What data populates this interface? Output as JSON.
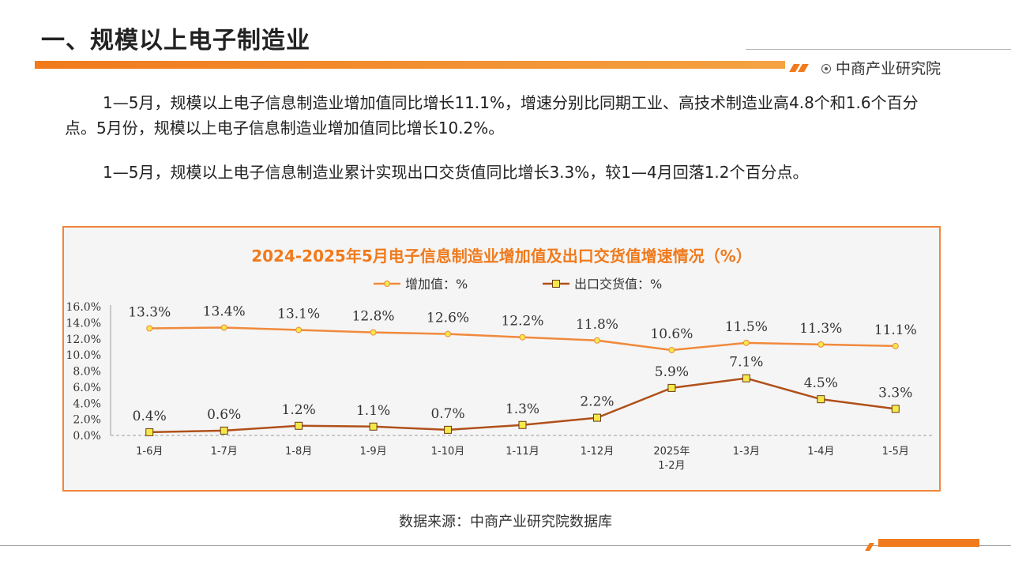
{
  "page": {
    "title": "一、规模以上电子制造业",
    "brand": "中商产业研究院",
    "paragraph1": "1—5月，规模以上电子信息制造业增加值同比增长11.1%，增速分别比同期工业、高技术制造业高4.8个和1.6个百分点。5月份，规模以上电子信息制造业增加值同比增长10.2%。",
    "paragraph2": "1—5月，规模以上电子信息制造业累计实现出口交货值同比增长3.3%，较1—4月回落1.2个百分点。",
    "source": "数据来源：中商产业研究院数据库",
    "accent_color": "#f07a1c"
  },
  "chart_data": {
    "type": "line",
    "title": "2024-2025年5月电子信息制造业增加值及出口交货值增速情况（%）",
    "categories": [
      "1-6月",
      "1-7月",
      "1-8月",
      "1-9月",
      "1-10月",
      "1-11月",
      "1-12月",
      "2025年\n1-2月",
      "1-3月",
      "1-4月",
      "1-5月"
    ],
    "series": [
      {
        "name": "增加值：%",
        "values": [
          13.3,
          13.4,
          13.1,
          12.8,
          12.6,
          12.2,
          11.8,
          10.6,
          11.5,
          11.3,
          11.1
        ],
        "color": "#f08a3c",
        "marker": "circle"
      },
      {
        "name": "出口交货值：%",
        "values": [
          0.4,
          0.6,
          1.2,
          1.1,
          0.7,
          1.3,
          2.2,
          5.9,
          7.1,
          4.5,
          3.3
        ],
        "color": "#b0501a",
        "marker": "square"
      }
    ],
    "yticks": [
      "0.0%",
      "2.0%",
      "4.0%",
      "6.0%",
      "8.0%",
      "10.0%",
      "12.0%",
      "14.0%",
      "16.0%"
    ],
    "ylim": [
      0,
      16
    ],
    "legend": "top-center",
    "grid": false
  }
}
